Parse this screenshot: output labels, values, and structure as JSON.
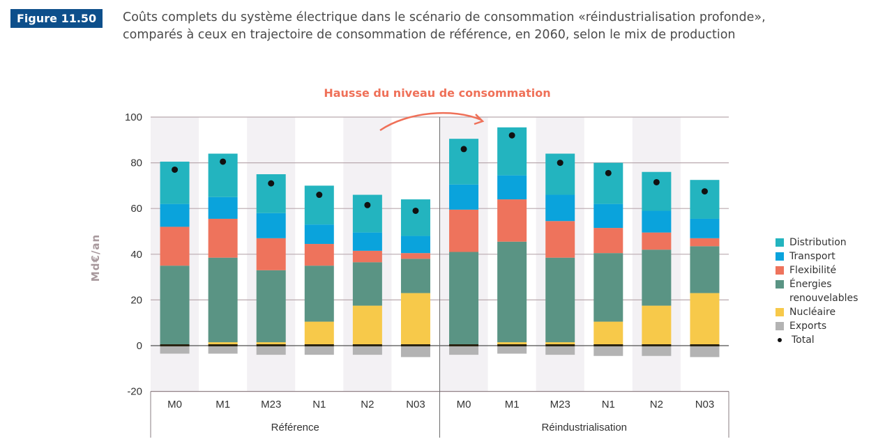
{
  "figure": {
    "badge": "Figure 11.50",
    "title_line1": "Coûts complets du système électrique dans le scénario de consommation «réindustrialisation profonde»,",
    "title_line2": "comparés à ceux en trajectoire de consommation de référence, en 2060, selon le mix de production"
  },
  "chart_data": {
    "type": "bar",
    "stacked": true,
    "title": "Coûts complets du système électrique dans le scénario de consommation «réindustrialisation profonde», comparés à ceux en trajectoire de consommation de référence, en 2060, selon le mix de production",
    "annotation": "Hausse du niveau de consommation",
    "xlabel": "",
    "ylabel": "Md€/an",
    "ylim": [
      -20,
      100
    ],
    "yticks": [
      -20,
      0,
      20,
      40,
      60,
      80,
      100
    ],
    "grid": true,
    "legend_position": "right",
    "groups": [
      {
        "label": "Référence",
        "categories": [
          "M0",
          "M1",
          "M23",
          "N1",
          "N2",
          "N03"
        ]
      },
      {
        "label": "Réindustrialisation",
        "categories": [
          "M0",
          "M1",
          "M23",
          "N1",
          "N2",
          "N03"
        ]
      }
    ],
    "categories": [
      "M0",
      "M1",
      "M23",
      "N1",
      "N2",
      "N03",
      "M0",
      "M1",
      "M23",
      "N1",
      "N2",
      "N03"
    ],
    "series": [
      {
        "name": "Nucléaire",
        "color": "#f7c94a",
        "values": [
          0.0,
          1.5,
          1.5,
          10.5,
          17.5,
          23.0,
          0.0,
          1.5,
          1.5,
          10.5,
          17.5,
          23.0
        ]
      },
      {
        "name": "Énergies renouvelables",
        "color": "#5a9484",
        "values": [
          35.0,
          37.0,
          31.5,
          24.5,
          19.0,
          15.0,
          41.0,
          44.0,
          37.0,
          30.0,
          24.5,
          20.5
        ]
      },
      {
        "name": "Flexibilité",
        "color": "#ee735c",
        "values": [
          17.0,
          17.0,
          14.0,
          9.5,
          5.0,
          2.5,
          18.5,
          18.5,
          16.0,
          11.0,
          7.5,
          3.5
        ]
      },
      {
        "name": "Transport",
        "color": "#0aa3dc",
        "values": [
          10.0,
          9.5,
          11.0,
          8.5,
          8.0,
          7.5,
          11.0,
          10.5,
          11.5,
          10.5,
          9.5,
          8.5
        ]
      },
      {
        "name": "Distribution",
        "color": "#23b4bf",
        "values": [
          18.5,
          19.0,
          17.0,
          17.0,
          16.5,
          16.0,
          20.0,
          21.0,
          18.0,
          18.0,
          17.0,
          17.0
        ]
      },
      {
        "name": "Exports",
        "color": "#b3b3b3",
        "values": [
          -3.5,
          -3.5,
          -4.0,
          -4.0,
          -4.0,
          -5.0,
          -4.0,
          -3.5,
          -4.0,
          -4.5,
          -4.5,
          -5.0
        ]
      }
    ],
    "total": {
      "name": "Total",
      "color": "#111111",
      "values": [
        77.0,
        80.5,
        71.0,
        66.0,
        61.5,
        59.0,
        86.0,
        92.0,
        80.0,
        75.5,
        71.5,
        67.5
      ]
    },
    "legend": [
      "Distribution",
      "Transport",
      "Flexibilité",
      "Énergies renouvelables",
      "Nucléaire",
      "Exports",
      "Total"
    ]
  },
  "legend": {
    "items": [
      {
        "label": "Distribution",
        "color": "#23b4bf"
      },
      {
        "label": "Transport",
        "color": "#0aa3dc"
      },
      {
        "label": "Flexibilité",
        "color": "#ee735c"
      },
      {
        "label": "Énergies renouvelables",
        "color": "#5a9484"
      },
      {
        "label": "Nucléaire",
        "color": "#f7c94a"
      },
      {
        "label": "Exports",
        "color": "#b3b3b3"
      },
      {
        "label": "Total",
        "color": "#111111"
      }
    ]
  }
}
